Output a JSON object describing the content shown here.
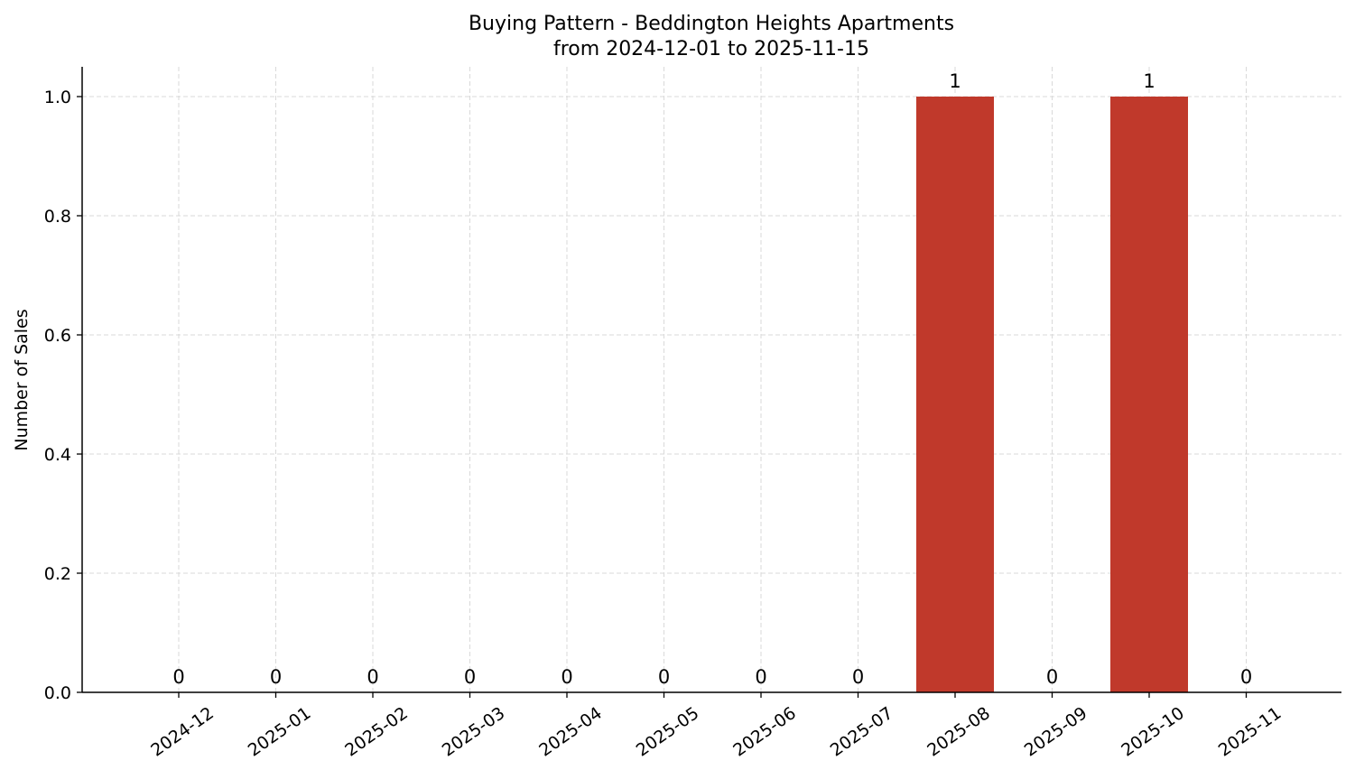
{
  "chart_data": {
    "type": "bar",
    "title": [
      "Buying Pattern - Beddington Heights Apartments",
      "from 2024-12-01 to 2025-11-15"
    ],
    "xlabel": "",
    "ylabel": "Number of Sales",
    "categories": [
      "2024-12",
      "2025-01",
      "2025-02",
      "2025-03",
      "2025-04",
      "2025-05",
      "2025-06",
      "2025-07",
      "2025-08",
      "2025-09",
      "2025-10",
      "2025-11"
    ],
    "values": [
      0,
      0,
      0,
      0,
      0,
      0,
      0,
      0,
      1,
      0,
      1,
      0
    ],
    "data_labels": [
      "0",
      "0",
      "0",
      "0",
      "0",
      "0",
      "0",
      "0",
      "1",
      "0",
      "1",
      "0"
    ],
    "yticks": [
      "0.0",
      "0.2",
      "0.4",
      "0.6",
      "0.8",
      "1.0"
    ],
    "ylim": [
      0,
      1.05
    ],
    "grid": true,
    "bar_color": "#c0392b"
  }
}
